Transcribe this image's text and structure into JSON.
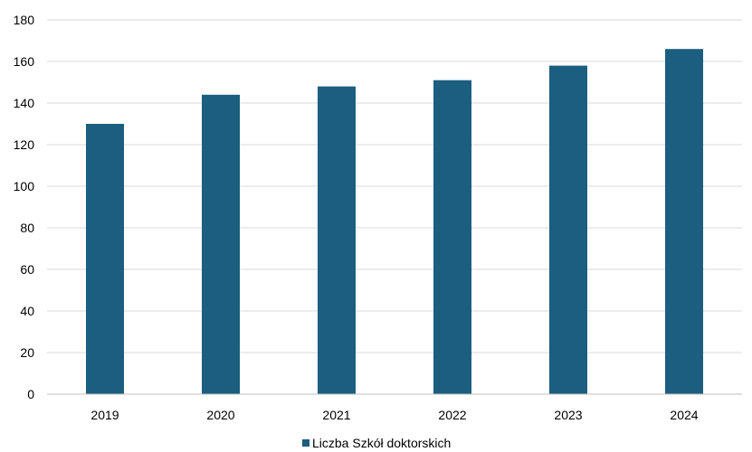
{
  "chart_data": {
    "type": "bar",
    "categories": [
      "2019",
      "2020",
      "2021",
      "2022",
      "2023",
      "2024"
    ],
    "series": [
      {
        "name": "Liczba Szkół doktorskich",
        "values": [
          130,
          144,
          148,
          151,
          158,
          166
        ]
      }
    ],
    "ylim": [
      0,
      180
    ],
    "yticks": [
      "0",
      "20",
      "40",
      "60",
      "80",
      "100",
      "120",
      "140",
      "160",
      "180"
    ],
    "ytick_values": [
      0,
      20,
      40,
      60,
      80,
      100,
      120,
      140,
      160,
      180
    ],
    "grid": true,
    "legend_position": "bottom",
    "colors": {
      "bar": "#1b5e80",
      "grid": "#d9d9d9",
      "axis": "#bfbfbf"
    }
  }
}
